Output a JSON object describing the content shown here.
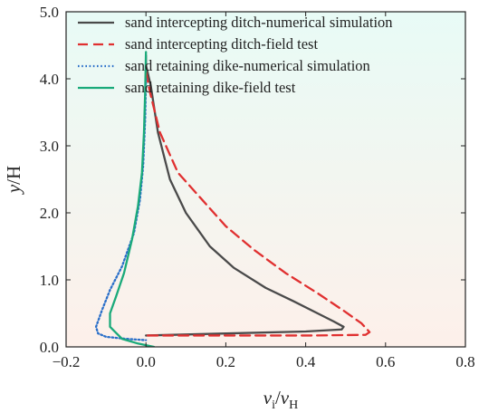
{
  "chart_data": {
    "type": "line",
    "title": "",
    "xlabel": {
      "base": "v",
      "base_sub": "i",
      "sep": "/",
      "denom": "v",
      "denom_sub": "H"
    },
    "ylabel": {
      "var": "y",
      "rest": "/H"
    },
    "xlim": [
      -0.2,
      0.8
    ],
    "ylim": [
      0.0,
      5.0
    ],
    "xticks": [
      -0.2,
      0.0,
      0.2,
      0.4,
      0.6,
      0.8
    ],
    "xtick_labels": [
      "−0.2",
      "0.0",
      "0.2",
      "0.4",
      "0.6",
      "0.8"
    ],
    "yticks": [
      0.0,
      1.0,
      2.0,
      3.0,
      4.0,
      5.0
    ],
    "ytick_labels": [
      "0.0",
      "1.0",
      "2.0",
      "3.0",
      "4.0",
      "5.0"
    ],
    "grid": false,
    "legend_position": "top-right",
    "background_gradient": [
      "#e8fbf6",
      "#fdf0ea"
    ],
    "series": [
      {
        "name": "sand intercepting ditch-numerical simulation",
        "color": "#4a4a4a",
        "dash": "solid",
        "x": [
          0.0,
          0.0,
          0.012,
          0.03,
          0.06,
          0.1,
          0.16,
          0.22,
          0.3,
          0.37,
          0.43,
          0.47,
          0.495,
          0.49,
          0.4,
          0.2,
          0.0
        ],
        "y": [
          4.35,
          4.2,
          3.9,
          3.2,
          2.5,
          2.0,
          1.5,
          1.18,
          0.88,
          0.68,
          0.5,
          0.38,
          0.3,
          0.26,
          0.23,
          0.2,
          0.17
        ]
      },
      {
        "name": "sand intercepting ditch-field test",
        "color": "#e03030",
        "dash": "dashed",
        "x": [
          0.0,
          0.01,
          0.035,
          0.08,
          0.14,
          0.2,
          0.27,
          0.35,
          0.43,
          0.5,
          0.54,
          0.56,
          0.55,
          0.42,
          0.2,
          0.0
        ],
        "y": [
          4.1,
          3.8,
          3.2,
          2.6,
          2.2,
          1.8,
          1.45,
          1.1,
          0.8,
          0.52,
          0.35,
          0.22,
          0.18,
          0.17,
          0.17,
          0.17
        ]
      },
      {
        "name": "sand retaining dike-numerical simulation",
        "color": "#2a6fc9",
        "dash": "dotted",
        "x": [
          0.0,
          -0.002,
          -0.007,
          -0.015,
          -0.03,
          -0.06,
          -0.09,
          -0.11,
          -0.125,
          -0.12,
          -0.1,
          -0.05,
          0.0
        ],
        "y": [
          4.0,
          3.4,
          2.7,
          2.2,
          1.7,
          1.2,
          0.85,
          0.55,
          0.3,
          0.2,
          0.15,
          0.12,
          0.1
        ]
      },
      {
        "name": "sand retaining dike-field test",
        "color": "#1aaa7a",
        "dash": "solid",
        "x": [
          0.0,
          -0.002,
          -0.005,
          -0.01,
          -0.02,
          -0.035,
          -0.055,
          -0.075,
          -0.09,
          -0.09,
          -0.06,
          -0.02,
          0.02
        ],
        "y": [
          4.4,
          3.8,
          3.2,
          2.6,
          2.1,
          1.6,
          1.1,
          0.75,
          0.5,
          0.3,
          0.12,
          0.05,
          0.0
        ]
      }
    ]
  }
}
